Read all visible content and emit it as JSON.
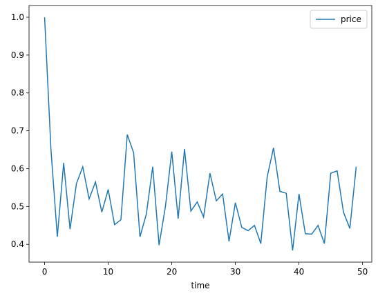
{
  "chart_data": {
    "type": "line",
    "xlabel": "time",
    "x": [
      0,
      1,
      2,
      3,
      4,
      5,
      6,
      7,
      8,
      9,
      10,
      11,
      12,
      13,
      14,
      15,
      16,
      17,
      18,
      19,
      20,
      21,
      22,
      23,
      24,
      25,
      26,
      27,
      28,
      29,
      30,
      31,
      32,
      33,
      34,
      35,
      36,
      37,
      38,
      39,
      40,
      41,
      42,
      43,
      44,
      45,
      46,
      47,
      48,
      49
    ],
    "series": [
      {
        "name": "price",
        "color": "#1f77b4",
        "values": [
          1.0,
          0.65,
          0.42,
          0.615,
          0.44,
          0.56,
          0.605,
          0.52,
          0.565,
          0.485,
          0.545,
          0.452,
          0.465,
          0.69,
          0.642,
          0.42,
          0.48,
          0.605,
          0.398,
          0.5,
          0.645,
          0.468,
          0.652,
          0.488,
          0.512,
          0.472,
          0.588,
          0.515,
          0.533,
          0.408,
          0.51,
          0.445,
          0.436,
          0.45,
          0.402,
          0.578,
          0.655,
          0.54,
          0.535,
          0.384,
          0.533,
          0.428,
          0.427,
          0.45,
          0.402,
          0.588,
          0.594,
          0.485,
          0.442,
          0.605
        ]
      }
    ],
    "xlim": [
      -2.45,
      51.45
    ],
    "xticks": [
      0,
      10,
      20,
      30,
      40,
      50
    ],
    "ylim": [
      0.353,
      1.031
    ],
    "yticks": [
      0.4,
      0.5,
      0.6,
      0.7,
      0.8,
      0.9,
      {
        "value": 1.0,
        "label": "1.0"
      }
    ],
    "legend": "upper right",
    "grid": false
  }
}
